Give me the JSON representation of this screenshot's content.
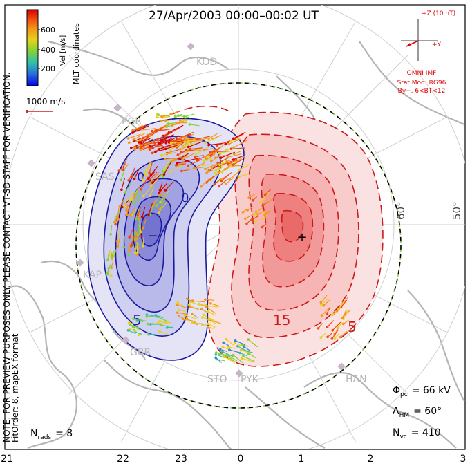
{
  "title": "27/Apr/2003 00:00–00:02 UT",
  "colorbar": {
    "label": "Vel [m/s]",
    "ticks": [
      600,
      400,
      200
    ],
    "colors": [
      "#0000ee",
      "#2a8ad8",
      "#2fbfae",
      "#7fd23a",
      "#e6d21a",
      "#f5961a",
      "#ee4a10",
      "#d40000"
    ]
  },
  "coord_label": "MLT coordinates",
  "ref_vector": {
    "label": "1000 m/s",
    "color": "#cc2222"
  },
  "note": "NOTE: FOR PREVIEW PURPOSES ONLY. PLEASE CONTACT VT-SD STAFF FOR VERIFICATION.",
  "fit_info": "FitOrder: 8, mapEX format",
  "imf": {
    "z_label": "+Z (10 nT)",
    "y_label": "+Y",
    "source": "OMNI IMF",
    "model": "Stat Mod: RG96",
    "condition": "By−, 6<BT<12",
    "color": "#dd0000"
  },
  "latitude_labels": [
    "60°",
    "50°"
  ],
  "stations": [
    "KOD",
    "PGR",
    "SAS",
    "KAP",
    "GBR",
    "STO",
    "PYK",
    "HAN"
  ],
  "contour_labels": [
    "5",
    "15",
    "5",
    "0",
    "0"
  ],
  "potential_markers": {
    "min": "−",
    "max": "+"
  },
  "stats": {
    "phi_pc": {
      "symbol": "Φ",
      "sub": "pc",
      "value": "= 66 kV"
    },
    "lambda_hm": {
      "symbol": "Λ",
      "sub": "HM",
      "value": "= 60°"
    },
    "n_vc": {
      "symbol": "N",
      "sub": "vc",
      "value": "= 410"
    },
    "n_rads": {
      "symbol": "N",
      "sub": "rads",
      "value": "= 8"
    }
  },
  "mlt_axis": [
    "21",
    "22",
    "23",
    "0",
    "1",
    "2",
    "3"
  ],
  "colors": {
    "negative_contour": "#1a1aa0",
    "positive_contour": "#cc1a1a",
    "land": "#b4b4b4",
    "station": "#c8b4c8"
  }
}
